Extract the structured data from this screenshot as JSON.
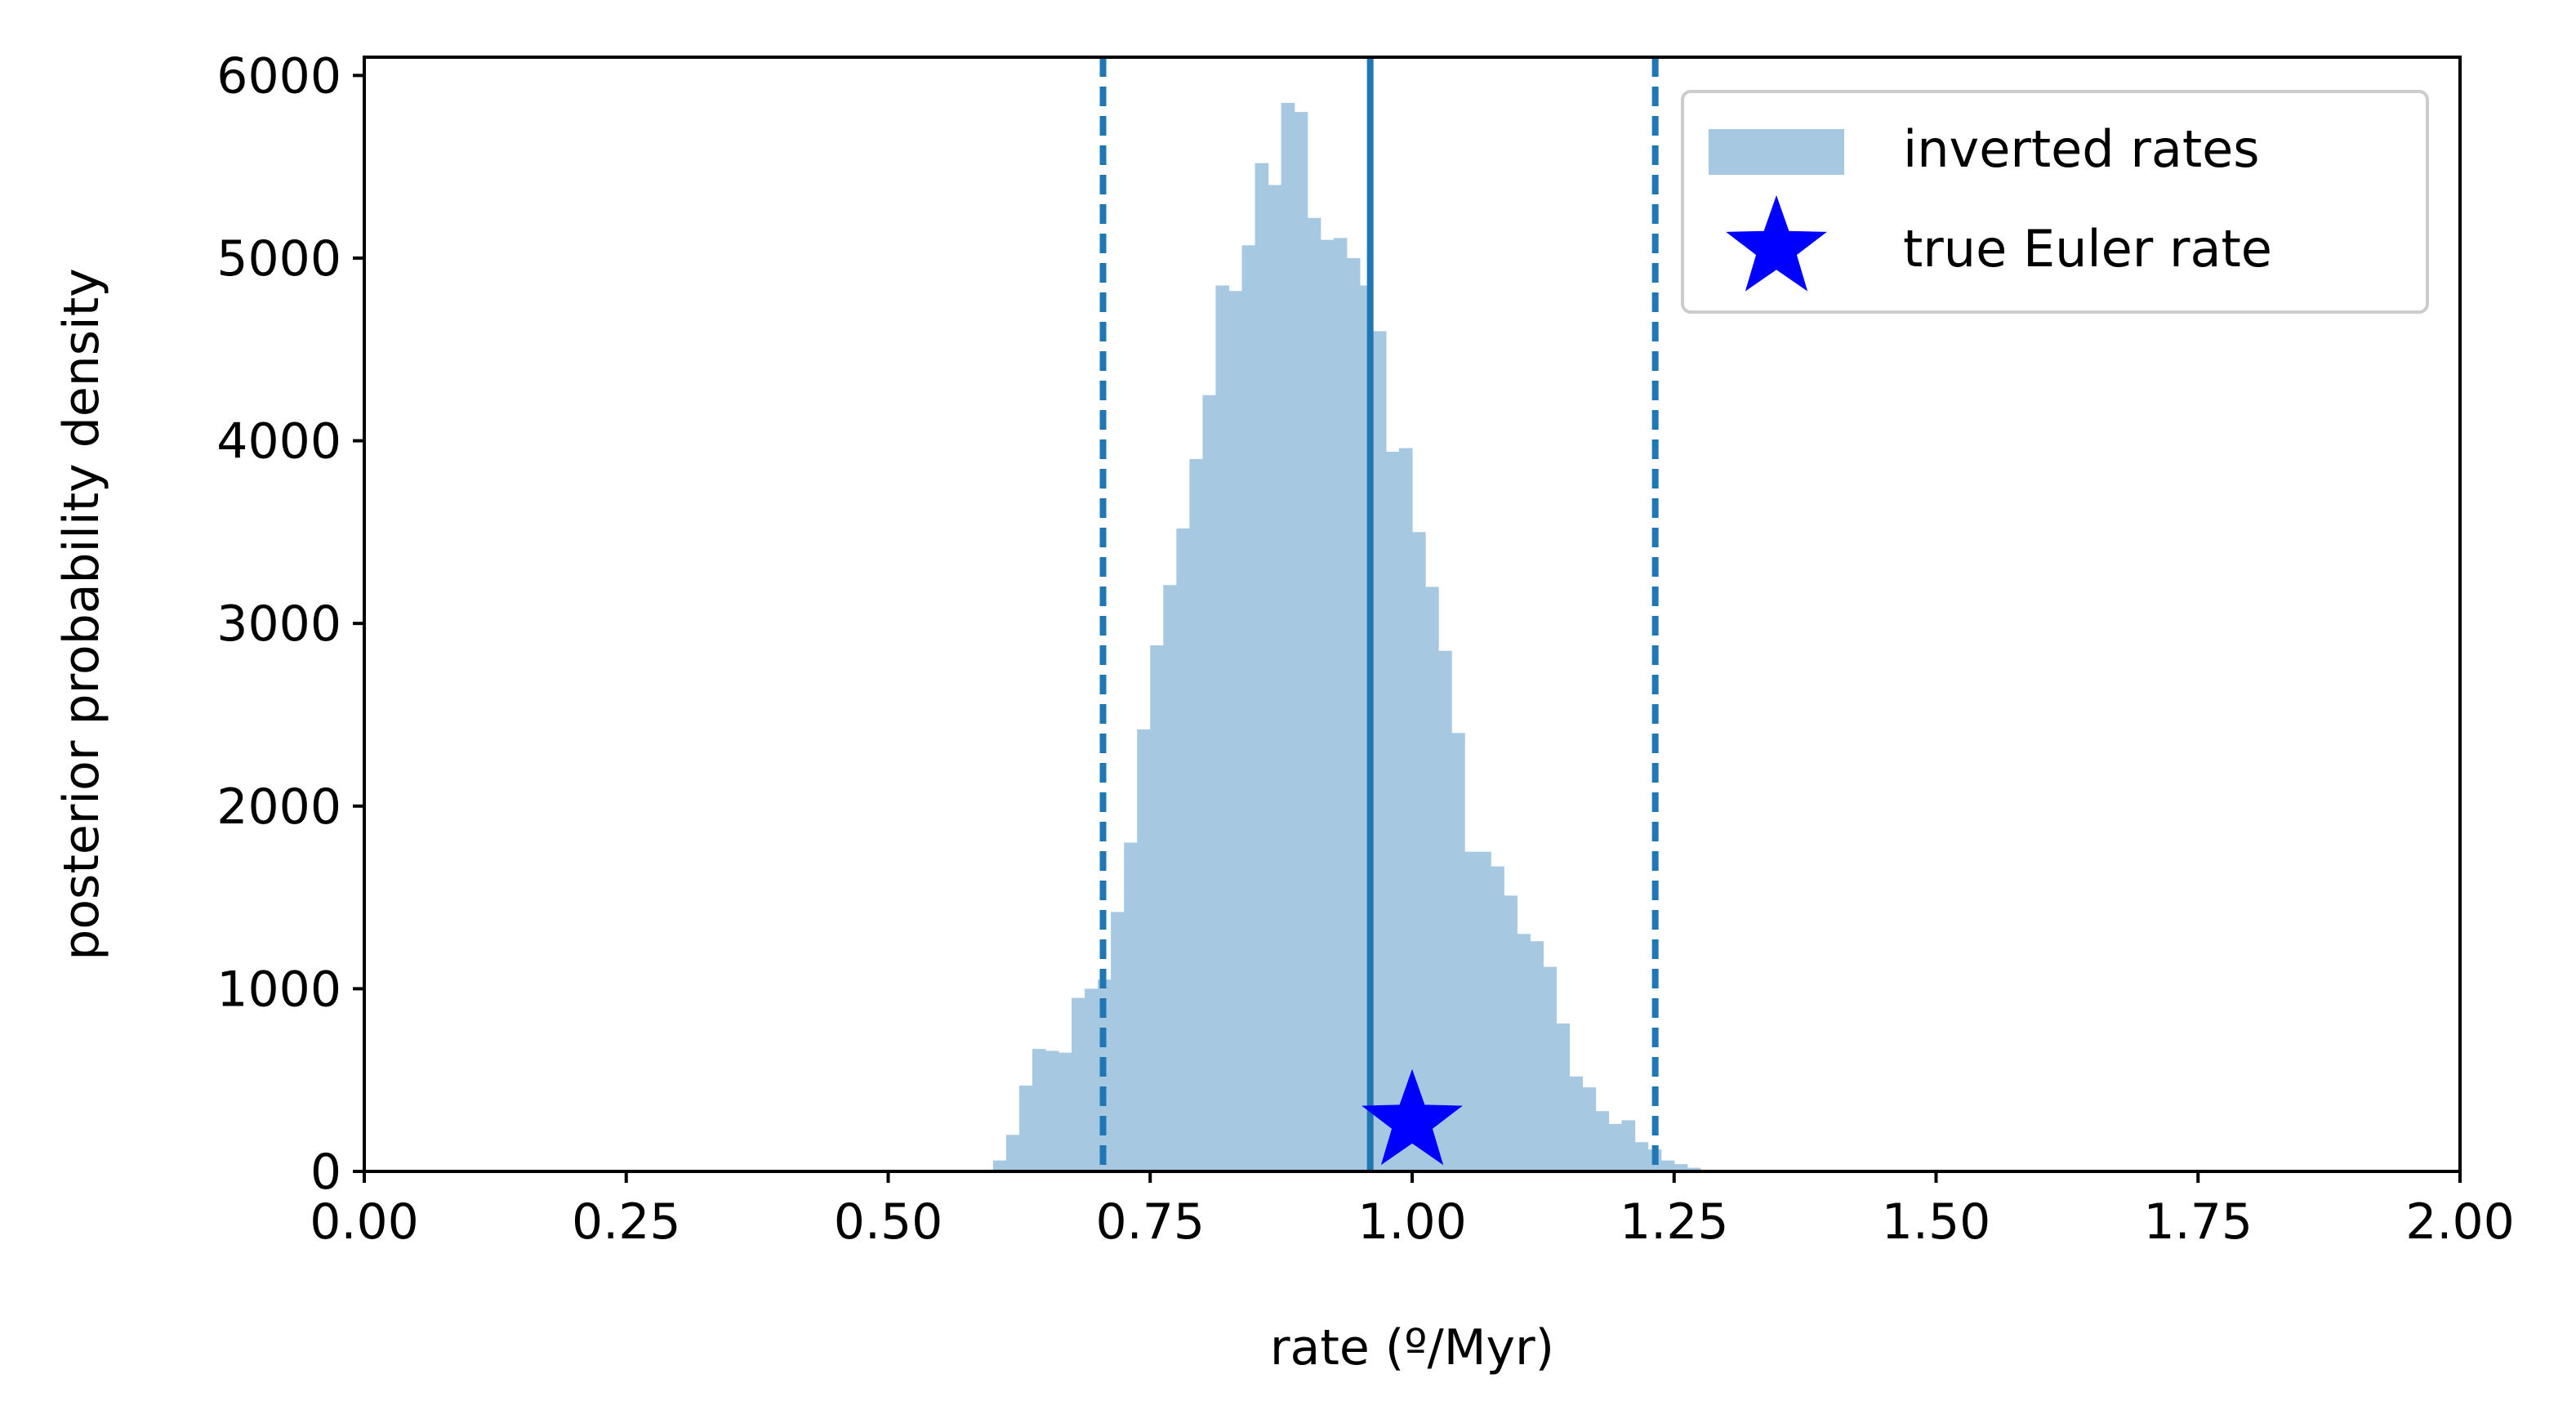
{
  "chart_data": {
    "type": "bar",
    "xlabel": "rate (º/Myr)",
    "ylabel": "posterior probability density",
    "xlim": [
      0.0,
      2.0
    ],
    "ylim": [
      0,
      6100
    ],
    "xticks": [
      "0.00",
      "0.25",
      "0.50",
      "0.75",
      "1.00",
      "1.25",
      "1.50",
      "1.75",
      "2.00"
    ],
    "yticks": [
      "0",
      "1000",
      "2000",
      "3000",
      "4000",
      "5000",
      "6000"
    ],
    "grid": false,
    "legend_position": "top-right",
    "histogram": {
      "name": "inverted rates",
      "color": "#a6c8e0",
      "bin_width": 0.0125,
      "bins_start": [
        0.6,
        0.6125,
        0.625,
        0.6375,
        0.65,
        0.6625,
        0.675,
        0.6875,
        0.7,
        0.7125,
        0.725,
        0.7375,
        0.75,
        0.7625,
        0.775,
        0.7875,
        0.8,
        0.8125,
        0.825,
        0.8375,
        0.85,
        0.8625,
        0.875,
        0.8875,
        0.9,
        0.9125,
        0.925,
        0.9375,
        0.95,
        0.9625,
        0.975,
        0.9875,
        1.0,
        1.0125,
        1.025,
        1.0375,
        1.05,
        1.0625,
        1.075,
        1.0875,
        1.1,
        1.1125,
        1.125,
        1.1375,
        1.15,
        1.1625,
        1.175,
        1.1875,
        1.2,
        1.2125,
        1.225,
        1.2375,
        1.25,
        1.2625,
        1.275,
        1.2875,
        1.3,
        1.3125,
        1.325,
        1.3375,
        1.35,
        1.3625,
        1.375,
        1.3875,
        1.4
      ],
      "values": [
        60,
        200,
        470,
        670,
        660,
        650,
        950,
        1000,
        1050,
        1420,
        1800,
        2420,
        2880,
        3210,
        3520,
        3900,
        4250,
        4850,
        4820,
        5070,
        5520,
        5400,
        5850,
        5800,
        5220,
        5100,
        5110,
        5000,
        4850,
        4600,
        3940,
        3960,
        3500,
        3200,
        2850,
        2400,
        1750,
        1750,
        1670,
        1510,
        1300,
        1260,
        1120,
        810,
        520,
        460,
        330,
        260,
        280,
        160,
        120,
        60,
        40,
        20,
        0,
        0,
        0,
        0,
        0,
        0,
        0,
        0,
        0,
        0,
        0
      ]
    },
    "median_line": {
      "x": 0.96,
      "color": "#1f77b4",
      "style": "solid"
    },
    "interval_lines": [
      {
        "x": 0.705,
        "color": "#1f77b4",
        "style": "dashed"
      },
      {
        "x": 1.232,
        "color": "#1f77b4",
        "style": "dashed"
      }
    ],
    "marker": {
      "name": "true Euler rate",
      "x": 1.0,
      "y": 270,
      "color": "#0000ff",
      "shape": "star"
    },
    "legend": [
      {
        "label": "inverted rates",
        "kind": "patch",
        "color": "#a6c8e0"
      },
      {
        "label": "true Euler rate",
        "kind": "star",
        "color": "#0000ff"
      }
    ]
  }
}
